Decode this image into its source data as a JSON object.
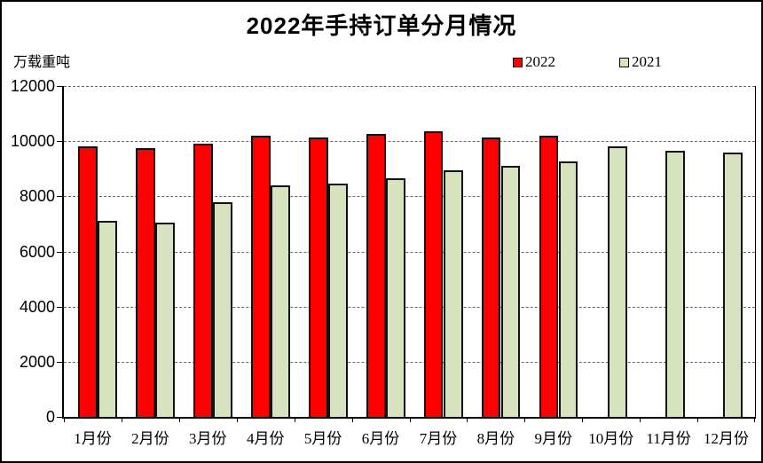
{
  "title": "2022年手持订单分月情况",
  "y_axis_unit": "万载重吨",
  "legend": [
    {
      "label": "2022",
      "color": "#FF0000"
    },
    {
      "label": "2021",
      "color": "#D7E3BF"
    }
  ],
  "colors": {
    "series_2022": "#FF0000",
    "series_2021": "#D7E3BF",
    "bar_border": "#111111",
    "axis": "#000000",
    "gridline": "#666666",
    "background": "#FFFFFF"
  },
  "chart_data": {
    "type": "bar",
    "title": "2022年手持订单分月情况",
    "xlabel": "",
    "ylabel": "万载重吨",
    "categories": [
      "1月份",
      "2月份",
      "3月份",
      "4月份",
      "5月份",
      "6月份",
      "7月份",
      "8月份",
      "9月份",
      "10月份",
      "11月份",
      "12月份"
    ],
    "series": [
      {
        "name": "2022",
        "color": "#FF0000",
        "values": [
          9800,
          9750,
          9900,
          10200,
          10150,
          10250,
          10350,
          10150,
          10200,
          null,
          null,
          null
        ]
      },
      {
        "name": "2021",
        "color": "#D7E3BF",
        "values": [
          7100,
          7050,
          7800,
          8400,
          8450,
          8650,
          8950,
          9100,
          9250,
          9800,
          9650,
          9600
        ]
      }
    ],
    "ylim": [
      0,
      12000
    ],
    "ytick_step": 2000,
    "yticks": [
      0,
      2000,
      4000,
      6000,
      8000,
      10000,
      12000
    ],
    "grid": "horizontal-dashed",
    "legend_position": "top-right"
  }
}
